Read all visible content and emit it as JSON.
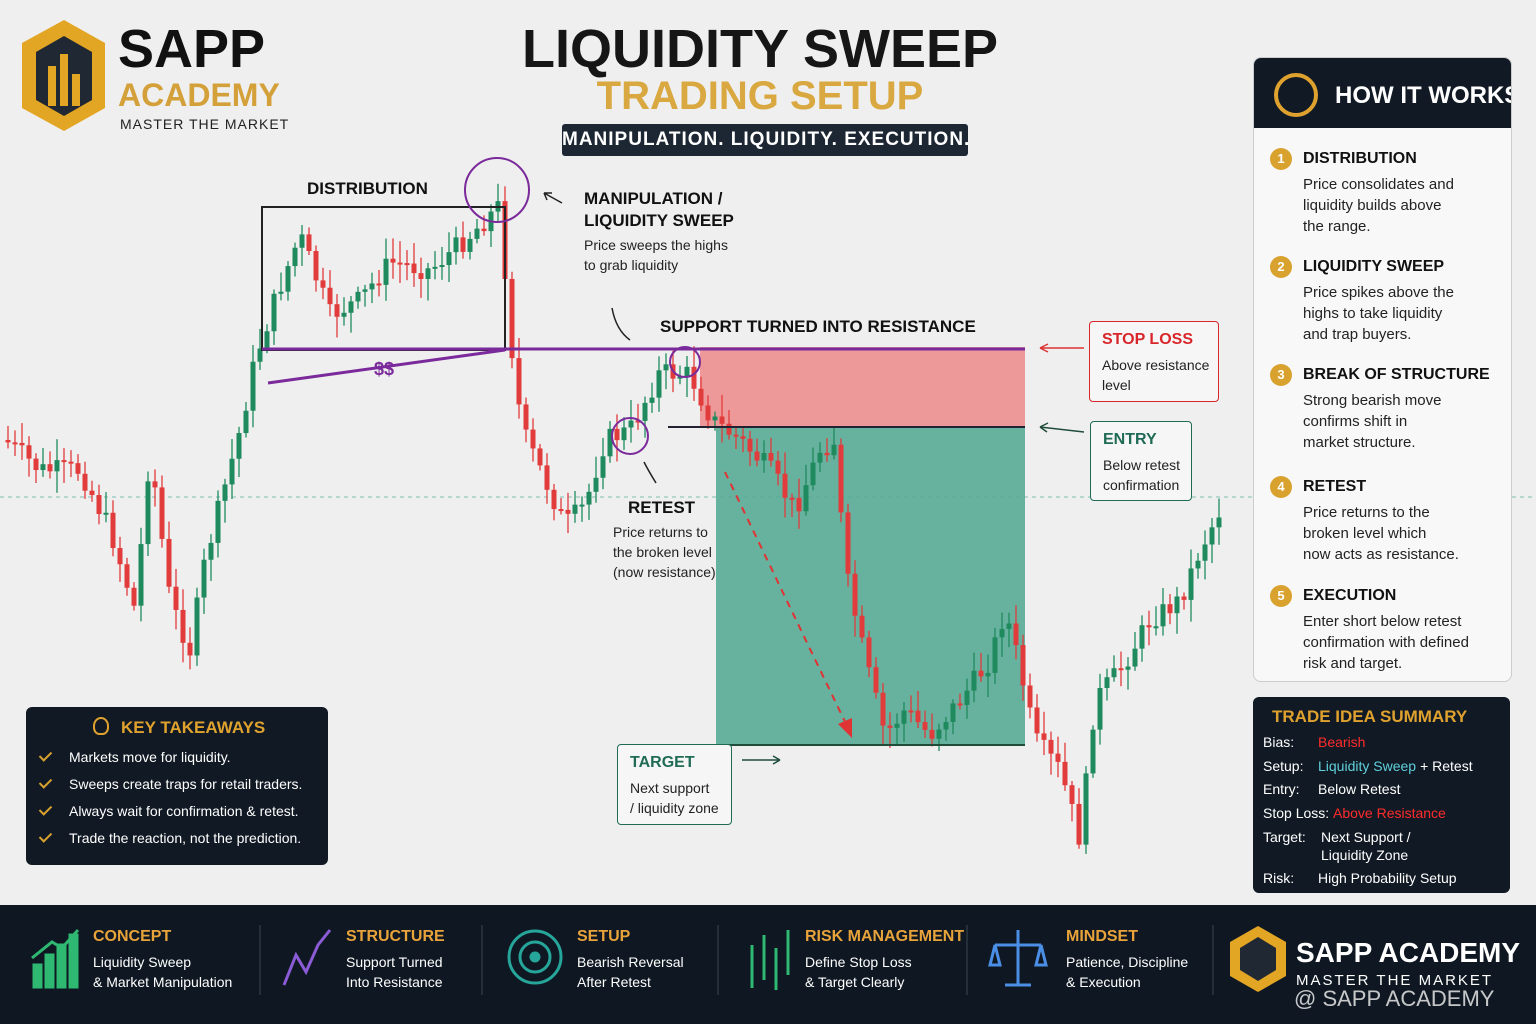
{
  "brand": {
    "name": "SAPP",
    "sub": "ACADEMY",
    "tagline": "MASTER THE MARKET"
  },
  "header": {
    "title": "LIQUIDITY SWEEP",
    "subtitle": "TRADING SETUP",
    "tagline": "MANIPULATION. LIQUIDITY. EXECUTION."
  },
  "annotations": {
    "distribution": "DISTRIBUTION",
    "sweep": {
      "title_lines": [
        "MANIPULATION /",
        "LIQUIDITY SWEEP"
      ],
      "text_lines": [
        "Price sweeps the highs",
        "to grab liquidity"
      ]
    },
    "liquidity": "$$",
    "support": "SUPPORT TURNED INTO RESISTANCE",
    "retest": {
      "title": "RETEST",
      "text_lines": [
        "Price returns to",
        "the broken level",
        "(now resistance)"
      ]
    },
    "stop_loss": {
      "title": "STOP LOSS",
      "text_lines": [
        "Above resistance",
        "level"
      ]
    },
    "entry": {
      "title": "ENTRY",
      "text_lines": [
        "Below retest",
        "confirmation"
      ]
    },
    "target": {
      "title": "TARGET",
      "text_lines": [
        "Next support",
        "/ liquidity zone"
      ]
    }
  },
  "how_it_works": {
    "title": "HOW IT WORKS",
    "steps": [
      {
        "number": 1,
        "title": "DISTRIBUTION",
        "lines": [
          "Price consolidates and",
          "liquidity builds above",
          "the range."
        ]
      },
      {
        "number": 2,
        "title": "LIQUIDITY SWEEP",
        "lines": [
          "Price spikes above the",
          "highs to take liquidity",
          "and trap buyers."
        ]
      },
      {
        "number": 3,
        "title": "BREAK OF STRUCTURE",
        "lines": [
          "Strong bearish move",
          "confirms shift in",
          "market structure."
        ]
      },
      {
        "number": 4,
        "title": "RETEST",
        "lines": [
          "Price returns to the",
          "broken level which",
          "now acts as resistance."
        ]
      },
      {
        "number": 5,
        "title": "EXECUTION",
        "lines": [
          "Enter short below retest",
          "confirmation with defined",
          "risk and target."
        ]
      }
    ]
  },
  "key_takeaways": {
    "title": "KEY TAKEAWAYS",
    "items": [
      "Markets move for liquidity.",
      "Sweeps create traps for retail traders.",
      "Always wait for confirmation & retest.",
      "Trade the reaction, not the prediction."
    ]
  },
  "trade_summary": {
    "title": "TRADE IDEA SUMMARY",
    "rows": [
      {
        "label": "Bias:",
        "value": [
          {
            "text": "Bearish",
            "color": "#ff2b2b"
          }
        ]
      },
      {
        "label": "Setup:",
        "value": [
          {
            "text": "Liquidity Sweep",
            "color": "#5fd0dc"
          },
          {
            "text": "+ Retest",
            "color": "#ffffff"
          }
        ]
      },
      {
        "label": "Entry:",
        "value": [
          {
            "text": "Below Retest",
            "color": "#ffffff"
          }
        ]
      },
      {
        "label": "Stop Loss:",
        "value": [
          {
            "text": "Above Resistance",
            "color": "#ff2b2b"
          }
        ]
      },
      {
        "label": "Target:",
        "value_lines": [
          "Next Support /",
          "Liquidity Zone"
        ]
      },
      {
        "label": "Risk:",
        "value": [
          {
            "text": "High Probability Setup",
            "color": "#ffffff"
          }
        ]
      }
    ]
  },
  "footer": {
    "items": [
      {
        "title": "CONCEPT",
        "lines": [
          "Liquidity Sweep",
          "& Market Manipulation"
        ]
      },
      {
        "title": "STRUCTURE",
        "lines": [
          "Support Turned",
          "Into Resistance"
        ]
      },
      {
        "title": "SETUP",
        "lines": [
          "Bearish Reversal",
          "After Retest"
        ]
      },
      {
        "title": "RISK MANAGEMENT",
        "lines": [
          "Define Stop Loss",
          "& Target Clearly"
        ]
      },
      {
        "title": "MINDSET",
        "lines": [
          "Patience, Discipline",
          "& Execution"
        ]
      }
    ],
    "brand": "SAPP ACADEMY",
    "tagline": "MASTER THE MARKET",
    "handle": "@ SAPP ACADEMY"
  }
}
